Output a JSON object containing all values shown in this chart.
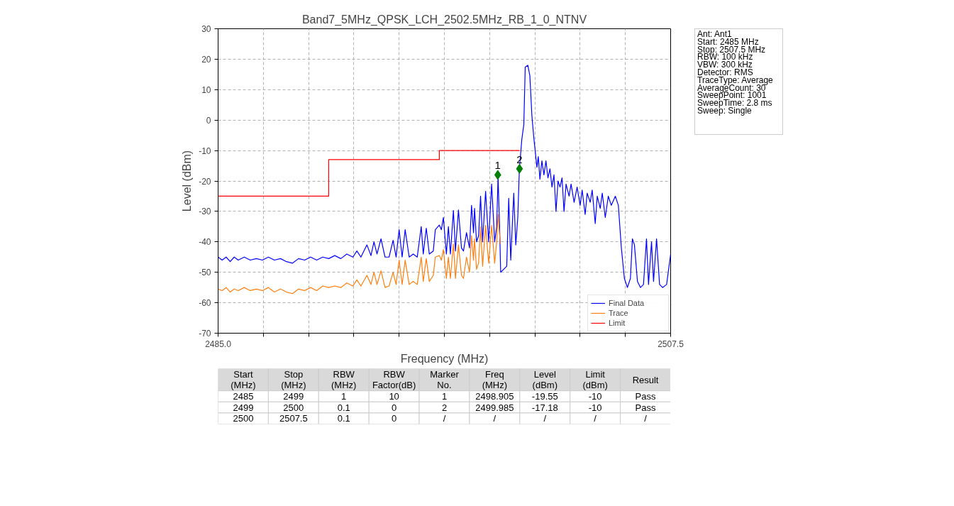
{
  "chart_data": {
    "type": "line",
    "title": "Band7_5MHz_QPSK_LCH_2502.5MHz_RB_1_0_NTNV",
    "xlabel": "Frequency (MHz)",
    "ylabel": "Level (dBm)",
    "xlim": [
      2485.0,
      2507.5
    ],
    "xticks": [
      {
        "value": 2485.0,
        "label": "2485.0"
      },
      {
        "value": 2487.25,
        "label": null
      },
      {
        "value": 2489.5,
        "label": null
      },
      {
        "value": 2491.75,
        "label": null
      },
      {
        "value": 2494.0,
        "label": null
      },
      {
        "value": 2496.25,
        "label": null
      },
      {
        "value": 2498.5,
        "label": null
      },
      {
        "value": 2500.75,
        "label": null
      },
      {
        "value": 2503.0,
        "label": null
      },
      {
        "value": 2505.25,
        "label": null
      },
      {
        "value": 2507.5,
        "label": "2507.5"
      }
    ],
    "ylim": [
      -70,
      30
    ],
    "yticks": [
      -70,
      -60,
      -50,
      -40,
      -30,
      -20,
      -10,
      0,
      10,
      20,
      30
    ],
    "grid": true,
    "legend": "bottom right",
    "series": [
      {
        "name": "Final Data",
        "color": "#0000ff",
        "x": [
          2485.0,
          2485.2,
          2485.4,
          2485.6,
          2485.8,
          2486.0,
          2486.3,
          2486.6,
          2486.9,
          2487.2,
          2487.5,
          2487.8,
          2488.1,
          2488.4,
          2488.7,
          2489.0,
          2489.3,
          2489.6,
          2489.9,
          2490.2,
          2490.5,
          2490.8,
          2491.1,
          2491.4,
          2491.7,
          2491.9,
          2492.1,
          2492.4,
          2492.6,
          2492.75,
          2492.9,
          2493.1,
          2493.3,
          2493.5,
          2493.7,
          2493.85,
          2494.0,
          2494.15,
          2494.3,
          2494.5,
          2494.7,
          2494.9,
          2495.1,
          2495.2,
          2495.35,
          2495.5,
          2495.7,
          2495.8,
          2496.0,
          2496.1,
          2496.2,
          2496.35,
          2496.45,
          2496.55,
          2496.7,
          2496.8,
          2496.95,
          2497.1,
          2497.2,
          2497.35,
          2497.5,
          2497.6,
          2497.7,
          2497.75,
          2497.85,
          2497.95,
          2498.05,
          2498.15,
          2498.3,
          2498.45,
          2498.6,
          2498.75,
          2498.85,
          2498.92,
          2499.0,
          2499.05,
          2499.2,
          2499.35,
          2499.45,
          2499.55,
          2499.7,
          2499.8,
          2499.9,
          2499.98,
          2500.1,
          2500.2,
          2500.27,
          2500.4,
          2500.5,
          2500.6,
          2500.7,
          2500.78,
          2500.85,
          2500.92,
          2501.0,
          2501.1,
          2501.2,
          2501.3,
          2501.4,
          2501.5,
          2501.6,
          2501.7,
          2501.8,
          2501.9,
          2502.0,
          2502.1,
          2502.2,
          2502.3,
          2502.45,
          2502.55,
          2502.7,
          2502.85,
          2503.0,
          2503.1,
          2503.25,
          2503.35,
          2503.5,
          2503.6,
          2503.75,
          2503.85,
          2504.0,
          2504.1,
          2504.25,
          2504.4,
          2504.55,
          2504.75,
          2504.9,
          2505.05,
          2505.2,
          2505.35,
          2505.5,
          2505.6,
          2505.7,
          2505.85,
          2506.0,
          2506.15,
          2506.3,
          2506.4,
          2506.55,
          2506.65,
          2506.8,
          2506.95,
          2507.1,
          2507.3,
          2507.5
        ],
        "values": [
          -45,
          -46,
          -45,
          -46.5,
          -45,
          -46,
          -45,
          -46,
          -45.5,
          -46,
          -45,
          -46,
          -45.5,
          -46.5,
          -47,
          -45.5,
          -46,
          -45,
          -46,
          -45,
          -45.5,
          -44.5,
          -45.5,
          -44,
          -45,
          -43,
          -45,
          -41,
          -44.5,
          -40,
          -44,
          -39,
          -45,
          -45,
          -39.5,
          -45,
          -36,
          -45,
          -36,
          -45,
          -44,
          -45,
          -35,
          -44,
          -35.5,
          -44,
          -43,
          -36,
          -34.5,
          -36,
          -32,
          -44,
          -35,
          -44,
          -29.7,
          -43,
          -29.5,
          -42,
          -43,
          -37,
          -42,
          -28,
          -37,
          -29,
          -40,
          -38,
          -25,
          -40,
          -23.4,
          -40,
          -21,
          -40,
          -35,
          -18.7,
          -36,
          -50,
          -49,
          -48,
          -25.7,
          -46,
          -24,
          -41,
          -32,
          -16,
          -6.4,
          -1.5,
          17.4,
          18,
          14.6,
          1.6,
          -6,
          -11,
          -15.5,
          -12,
          -19.4,
          -13.4,
          -18,
          -13.4,
          -19,
          -16,
          -22,
          -18,
          -30,
          -20,
          -22,
          -19,
          -30,
          -21,
          -25,
          -21,
          -27,
          -22,
          -28,
          -23,
          -31,
          -24,
          -27,
          -23,
          -34,
          -25,
          -29,
          -24,
          -32,
          -25,
          -28,
          -25,
          -28,
          -42,
          -52,
          -55,
          -52,
          -39,
          -41,
          -53,
          -55,
          -54,
          -39,
          -54,
          -40,
          -53,
          -39,
          -54,
          -55,
          -54,
          -44
        ]
      },
      {
        "name": "Trace",
        "color": "#ff7f0e",
        "x": [
          2485.0,
          2485.2,
          2485.4,
          2485.6,
          2485.8,
          2486.0,
          2486.3,
          2486.6,
          2486.9,
          2487.2,
          2487.5,
          2487.8,
          2488.1,
          2488.4,
          2488.7,
          2489.0,
          2489.3,
          2489.6,
          2489.9,
          2490.2,
          2490.5,
          2490.8,
          2491.1,
          2491.4,
          2491.7,
          2491.9,
          2492.1,
          2492.4,
          2492.6,
          2492.75,
          2492.9,
          2493.1,
          2493.3,
          2493.5,
          2493.7,
          2493.85,
          2494.0,
          2494.15,
          2494.3,
          2494.5,
          2494.7,
          2494.9,
          2495.1,
          2495.2,
          2495.35,
          2495.5,
          2495.7,
          2495.8,
          2496.0,
          2496.1,
          2496.2,
          2496.35,
          2496.45,
          2496.55,
          2496.7,
          2496.8,
          2496.95,
          2497.1,
          2497.2,
          2497.35,
          2497.5,
          2497.6,
          2497.7,
          2497.75,
          2497.85,
          2497.95,
          2498.05,
          2498.15,
          2498.3,
          2498.45,
          2498.6,
          2498.75,
          2498.85,
          2498.92,
          2499.03
        ],
        "values": [
          -55.5,
          -56,
          -55,
          -56.5,
          -55.5,
          -56,
          -55,
          -56,
          -55.5,
          -56,
          -55,
          -56.5,
          -55.5,
          -56.5,
          -57,
          -55.5,
          -56,
          -55,
          -56,
          -54.5,
          -55,
          -54.5,
          -55,
          -53.5,
          -54.5,
          -52.5,
          -54.5,
          -51,
          -54,
          -50,
          -54,
          -49.5,
          -55,
          -54.5,
          -50,
          -54,
          -46,
          -54,
          -46,
          -54,
          -53,
          -54,
          -45,
          -53,
          -45.5,
          -53,
          -51,
          -45,
          -44.5,
          -46,
          -42.5,
          -52,
          -45,
          -52,
          -40.7,
          -52,
          -41,
          -51,
          -52,
          -45,
          -50,
          -38,
          -46,
          -39,
          -49,
          -47,
          -35,
          -48,
          -34.6,
          -47,
          -34.6,
          -47,
          -40,
          -31,
          -40.7
        ]
      },
      {
        "name": "Limit",
        "color": "#ff0000",
        "x": [
          2485.0,
          2490.5,
          2490.5,
          2496.0,
          2496.0,
          2500.0
        ],
        "values": [
          -25,
          -25,
          -13,
          -13,
          -10,
          -10
        ]
      },
      {
        "type": "scatter",
        "marker": "diamond",
        "color": "#008000",
        "x": [
          2498.905,
          2499.985
        ],
        "values": [
          -18,
          -16
        ]
      }
    ],
    "annotations": [
      {
        "text": "1",
        "x": 2498.905,
        "y": -18
      },
      {
        "text": "2",
        "x": 2499.985,
        "y": -16
      },
      "Ant: Ant1\nStart: 2485 MHz\nStop: 2507.5 MHz\nRBW: 100 kHz\nVBW: 300 kHz\nDetector: RMS\nTraceType: Average\nAverageCount: 30\nSweepPoint: 1001\nSweepTime: 2.8 ms\nSweep: Single",
      "Start\n(MHz)",
      "Stop\n(MHz)",
      "RBW\n(MHz)",
      "RBW\nFactor(dB)",
      "Marker\nNo.",
      "Freq\n(MHz)",
      "Level\n(dBm)",
      "Limit\n(dBm)",
      "Result",
      "2485",
      "2499",
      "1",
      "10",
      "1",
      "2498.905",
      "-19.55",
      "-10",
      "Pass",
      "2499",
      "2500",
      "0.1",
      "0",
      "2",
      "2499.985",
      "-17.18",
      "-10",
      "Pass",
      "2500",
      "2507.5",
      "0.1",
      "0",
      "/",
      "/",
      "/",
      "/",
      "/"
    ]
  }
}
